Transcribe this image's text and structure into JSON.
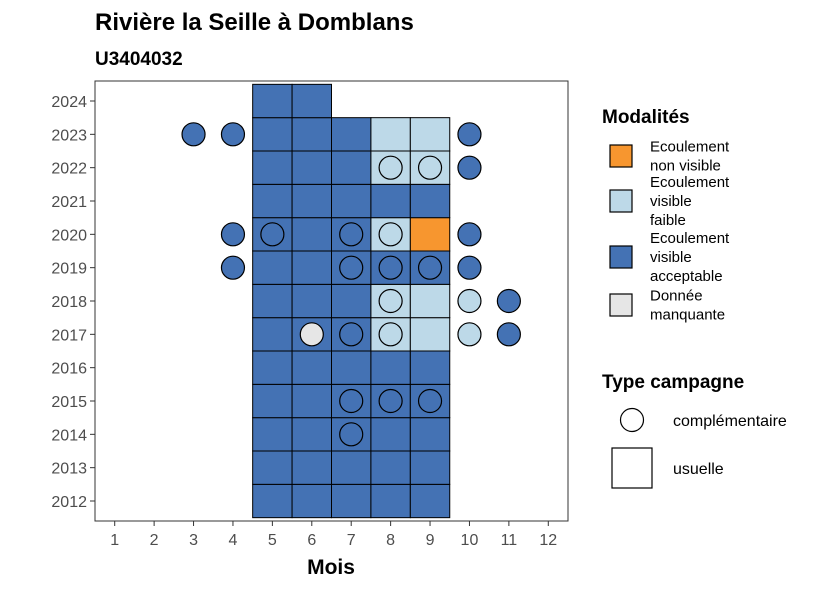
{
  "chart_data": {
    "type": "heatmap",
    "title": "Rivière la Seille à Domblans",
    "subtitle": "U3404032",
    "xlabel": "Mois",
    "ylabel": "",
    "x_ticks": [
      "1",
      "2",
      "3",
      "4",
      "5",
      "6",
      "7",
      "8",
      "9",
      "10",
      "11",
      "12"
    ],
    "y_ticks": [
      "2012",
      "2013",
      "2014",
      "2015",
      "2016",
      "2017",
      "2018",
      "2019",
      "2020",
      "2021",
      "2022",
      "2023",
      "2024"
    ],
    "xlim": [
      0.5,
      12.5
    ],
    "ylim": [
      2011.4,
      2024.6
    ],
    "legend_modalites": {
      "title": "Modalités",
      "items": [
        {
          "key": "nv",
          "lines": [
            "Ecoulement",
            "non visible"
          ],
          "color": "#F7962F"
        },
        {
          "key": "vf",
          "lines": [
            "Ecoulement",
            "visible",
            "faible"
          ],
          "color": "#BDD9E8"
        },
        {
          "key": "va",
          "lines": [
            "Ecoulement",
            "visible",
            "acceptable"
          ],
          "color": "#4472B4"
        },
        {
          "key": "dm",
          "lines": [
            "Donnée",
            "manquante"
          ],
          "color": "#E6E6E6"
        }
      ]
    },
    "legend_campagne": {
      "title": "Type campagne",
      "items": [
        {
          "key": "comp",
          "label": "complémentaire",
          "shape": "circle"
        },
        {
          "key": "usu",
          "label": "usuelle",
          "shape": "square"
        }
      ]
    },
    "usuelle": [
      {
        "year": 2012,
        "month": 5,
        "m": "va"
      },
      {
        "year": 2012,
        "month": 6,
        "m": "va"
      },
      {
        "year": 2012,
        "month": 7,
        "m": "va"
      },
      {
        "year": 2012,
        "month": 8,
        "m": "va"
      },
      {
        "year": 2012,
        "month": 9,
        "m": "va"
      },
      {
        "year": 2013,
        "month": 5,
        "m": "va"
      },
      {
        "year": 2013,
        "month": 6,
        "m": "va"
      },
      {
        "year": 2013,
        "month": 7,
        "m": "va"
      },
      {
        "year": 2013,
        "month": 8,
        "m": "va"
      },
      {
        "year": 2013,
        "month": 9,
        "m": "va"
      },
      {
        "year": 2014,
        "month": 5,
        "m": "va"
      },
      {
        "year": 2014,
        "month": 6,
        "m": "va"
      },
      {
        "year": 2014,
        "month": 7,
        "m": "va"
      },
      {
        "year": 2014,
        "month": 8,
        "m": "va"
      },
      {
        "year": 2014,
        "month": 9,
        "m": "va"
      },
      {
        "year": 2015,
        "month": 5,
        "m": "va"
      },
      {
        "year": 2015,
        "month": 6,
        "m": "va"
      },
      {
        "year": 2015,
        "month": 7,
        "m": "va"
      },
      {
        "year": 2015,
        "month": 8,
        "m": "va"
      },
      {
        "year": 2015,
        "month": 9,
        "m": "va"
      },
      {
        "year": 2016,
        "month": 5,
        "m": "va"
      },
      {
        "year": 2016,
        "month": 6,
        "m": "va"
      },
      {
        "year": 2016,
        "month": 7,
        "m": "va"
      },
      {
        "year": 2016,
        "month": 8,
        "m": "va"
      },
      {
        "year": 2016,
        "month": 9,
        "m": "va"
      },
      {
        "year": 2017,
        "month": 5,
        "m": "va"
      },
      {
        "year": 2017,
        "month": 6,
        "m": "va"
      },
      {
        "year": 2017,
        "month": 7,
        "m": "va"
      },
      {
        "year": 2017,
        "month": 8,
        "m": "vf"
      },
      {
        "year": 2017,
        "month": 9,
        "m": "vf"
      },
      {
        "year": 2018,
        "month": 5,
        "m": "va"
      },
      {
        "year": 2018,
        "month": 6,
        "m": "va"
      },
      {
        "year": 2018,
        "month": 7,
        "m": "va"
      },
      {
        "year": 2018,
        "month": 8,
        "m": "vf"
      },
      {
        "year": 2018,
        "month": 9,
        "m": "vf"
      },
      {
        "year": 2019,
        "month": 5,
        "m": "va"
      },
      {
        "year": 2019,
        "month": 6,
        "m": "va"
      },
      {
        "year": 2019,
        "month": 7,
        "m": "va"
      },
      {
        "year": 2019,
        "month": 8,
        "m": "va"
      },
      {
        "year": 2019,
        "month": 9,
        "m": "va"
      },
      {
        "year": 2020,
        "month": 5,
        "m": "va"
      },
      {
        "year": 2020,
        "month": 6,
        "m": "va"
      },
      {
        "year": 2020,
        "month": 7,
        "m": "va"
      },
      {
        "year": 2020,
        "month": 8,
        "m": "vf"
      },
      {
        "year": 2020,
        "month": 9,
        "m": "nv"
      },
      {
        "year": 2021,
        "month": 5,
        "m": "va"
      },
      {
        "year": 2021,
        "month": 6,
        "m": "va"
      },
      {
        "year": 2021,
        "month": 7,
        "m": "va"
      },
      {
        "year": 2021,
        "month": 8,
        "m": "va"
      },
      {
        "year": 2021,
        "month": 9,
        "m": "va"
      },
      {
        "year": 2022,
        "month": 5,
        "m": "va"
      },
      {
        "year": 2022,
        "month": 6,
        "m": "va"
      },
      {
        "year": 2022,
        "month": 7,
        "m": "va"
      },
      {
        "year": 2022,
        "month": 8,
        "m": "vf"
      },
      {
        "year": 2022,
        "month": 9,
        "m": "vf"
      },
      {
        "year": 2023,
        "month": 5,
        "m": "va"
      },
      {
        "year": 2023,
        "month": 6,
        "m": "va"
      },
      {
        "year": 2023,
        "month": 7,
        "m": "va"
      },
      {
        "year": 2023,
        "month": 8,
        "m": "vf"
      },
      {
        "year": 2023,
        "month": 9,
        "m": "vf"
      },
      {
        "year": 2024,
        "month": 5,
        "m": "va"
      },
      {
        "year": 2024,
        "month": 6,
        "m": "va"
      }
    ],
    "complementaire": [
      {
        "year": 2023,
        "month": 3,
        "m": "va"
      },
      {
        "year": 2023,
        "month": 4,
        "m": "va"
      },
      {
        "year": 2023,
        "month": 10,
        "m": "va"
      },
      {
        "year": 2022,
        "month": 8,
        "m": "vf"
      },
      {
        "year": 2022,
        "month": 9,
        "m": "vf"
      },
      {
        "year": 2022,
        "month": 10,
        "m": "va"
      },
      {
        "year": 2020,
        "month": 4,
        "m": "va"
      },
      {
        "year": 2020,
        "month": 5,
        "m": "va"
      },
      {
        "year": 2020,
        "month": 7,
        "m": "va"
      },
      {
        "year": 2020,
        "month": 8,
        "m": "vf"
      },
      {
        "year": 2020,
        "month": 10,
        "m": "va"
      },
      {
        "year": 2019,
        "month": 4,
        "m": "va"
      },
      {
        "year": 2019,
        "month": 7,
        "m": "va"
      },
      {
        "year": 2019,
        "month": 8,
        "m": "va"
      },
      {
        "year": 2019,
        "month": 9,
        "m": "va"
      },
      {
        "year": 2019,
        "month": 10,
        "m": "va"
      },
      {
        "year": 2018,
        "month": 8,
        "m": "vf"
      },
      {
        "year": 2018,
        "month": 10,
        "m": "vf"
      },
      {
        "year": 2018,
        "month": 11,
        "m": "va"
      },
      {
        "year": 2017,
        "month": 6,
        "m": "dm"
      },
      {
        "year": 2017,
        "month": 7,
        "m": "va"
      },
      {
        "year": 2017,
        "month": 8,
        "m": "vf"
      },
      {
        "year": 2017,
        "month": 10,
        "m": "vf"
      },
      {
        "year": 2017,
        "month": 11,
        "m": "va"
      },
      {
        "year": 2015,
        "month": 7,
        "m": "va"
      },
      {
        "year": 2015,
        "month": 8,
        "m": "va"
      },
      {
        "year": 2015,
        "month": 9,
        "m": "va"
      },
      {
        "year": 2014,
        "month": 7,
        "m": "va"
      }
    ]
  }
}
